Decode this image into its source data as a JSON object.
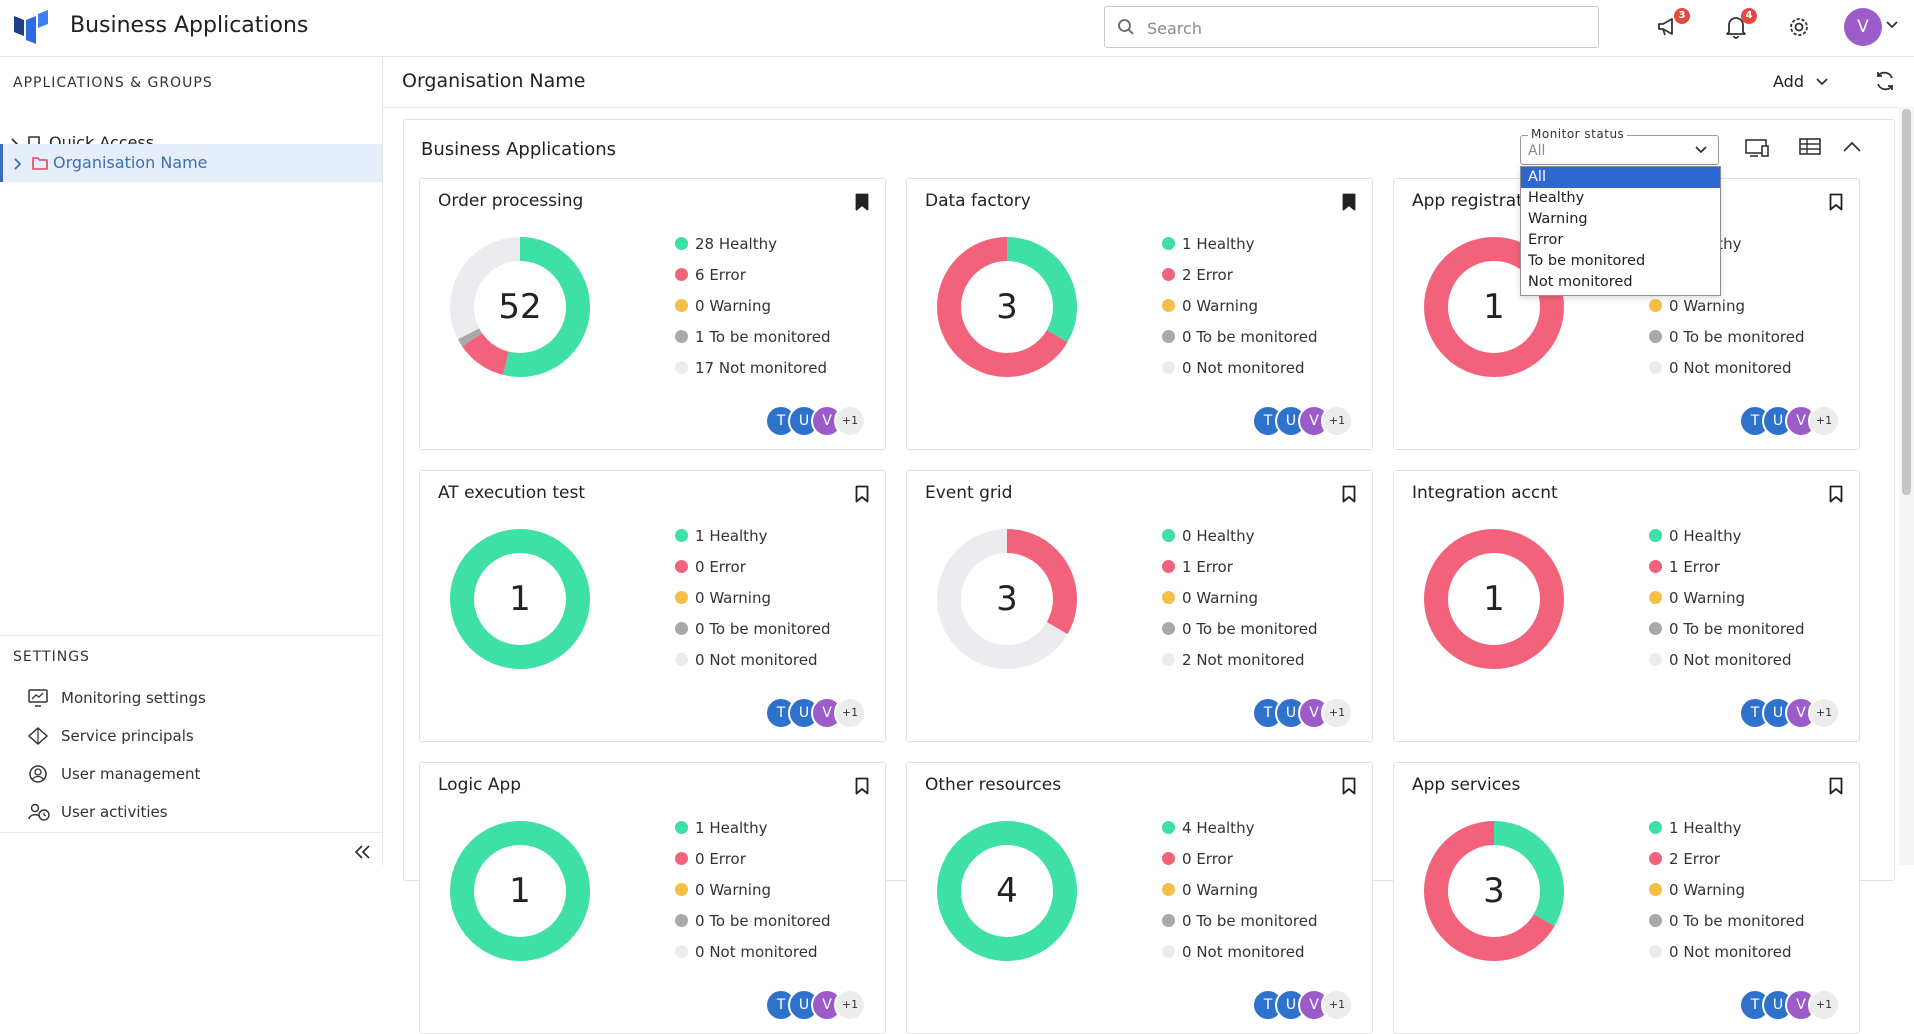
{
  "header": {
    "app_title": "Business Applications",
    "search_placeholder": "Search",
    "announcements_badge": "3",
    "notifications_badge": "4",
    "user_initial": "V"
  },
  "sidebar": {
    "section_title": "APPLICATIONS & GROUPS",
    "tree": [
      {
        "label": "Quick Access",
        "icon": "bookmark-icon",
        "selected": false
      },
      {
        "label": "Organisation Name",
        "icon": "folder-icon",
        "selected": true
      }
    ],
    "settings_title": "SETTINGS",
    "settings_items": [
      {
        "label": "Monitoring settings",
        "icon": "monitor-icon"
      },
      {
        "label": "Service principals",
        "icon": "diamond-icon"
      },
      {
        "label": "User management",
        "icon": "user-circle-icon"
      },
      {
        "label": "User activities",
        "icon": "user-clock-icon"
      }
    ]
  },
  "main": {
    "org_title": "Organisation Name",
    "add_label": "Add",
    "panel_title": "Business Applications",
    "monitor_status": {
      "label": "Monitor status",
      "value": "All",
      "options": [
        "All",
        "Healthy",
        "Warning",
        "Error",
        "To be monitored",
        "Not monitored"
      ]
    }
  },
  "colors": {
    "healthy": "#3ee0a6",
    "error": "#f2637b",
    "warning": "#f5bf47",
    "to_be_monitored": "#a9a9a9",
    "not_monitored": "#ececf0",
    "accent": "#3a6fb5"
  },
  "legend_labels": {
    "healthy": "Healthy",
    "error": "Error",
    "warning": "Warning",
    "to_be_monitored": "To be monitored",
    "not_monitored": "Not monitored"
  },
  "avatars": [
    {
      "initial": "T",
      "color": "#2f72cc"
    },
    {
      "initial": "U",
      "color": "#2f72cc"
    },
    {
      "initial": "V",
      "color": "#9b5cc9"
    },
    {
      "initial": "+1",
      "color": "#ececec"
    }
  ],
  "cards": [
    {
      "title": "Order processing",
      "total": 52,
      "bookmarked": true,
      "counts": {
        "healthy": 28,
        "error": 6,
        "warning": 0,
        "to_be_monitored": 1,
        "not_monitored": 17
      }
    },
    {
      "title": "Data factory",
      "total": 3,
      "bookmarked": true,
      "counts": {
        "healthy": 1,
        "error": 2,
        "warning": 0,
        "to_be_monitored": 0,
        "not_monitored": 0
      }
    },
    {
      "title": "App registrations",
      "total": 1,
      "bookmarked": false,
      "counts": {
        "healthy": 0,
        "error": 1,
        "warning": 0,
        "to_be_monitored": 0,
        "not_monitored": 0
      }
    },
    {
      "title": "AT execution test",
      "total": 1,
      "bookmarked": false,
      "counts": {
        "healthy": 1,
        "error": 0,
        "warning": 0,
        "to_be_monitored": 0,
        "not_monitored": 0
      }
    },
    {
      "title": "Event grid",
      "total": 3,
      "bookmarked": false,
      "counts": {
        "healthy": 0,
        "error": 1,
        "warning": 0,
        "to_be_monitored": 0,
        "not_monitored": 2
      }
    },
    {
      "title": "Integration accnt",
      "total": 1,
      "bookmarked": false,
      "counts": {
        "healthy": 0,
        "error": 1,
        "warning": 0,
        "to_be_monitored": 0,
        "not_monitored": 0
      }
    },
    {
      "title": "Logic App",
      "total": 1,
      "bookmarked": false,
      "counts": {
        "healthy": 1,
        "error": 0,
        "warning": 0,
        "to_be_monitored": 0,
        "not_monitored": 0
      }
    },
    {
      "title": "Other resources",
      "total": 4,
      "bookmarked": false,
      "counts": {
        "healthy": 4,
        "error": 0,
        "warning": 0,
        "to_be_monitored": 0,
        "not_monitored": 0
      }
    },
    {
      "title": "App services",
      "total": 3,
      "bookmarked": false,
      "counts": {
        "healthy": 1,
        "error": 2,
        "warning": 0,
        "to_be_monitored": 0,
        "not_monitored": 0
      }
    }
  ]
}
